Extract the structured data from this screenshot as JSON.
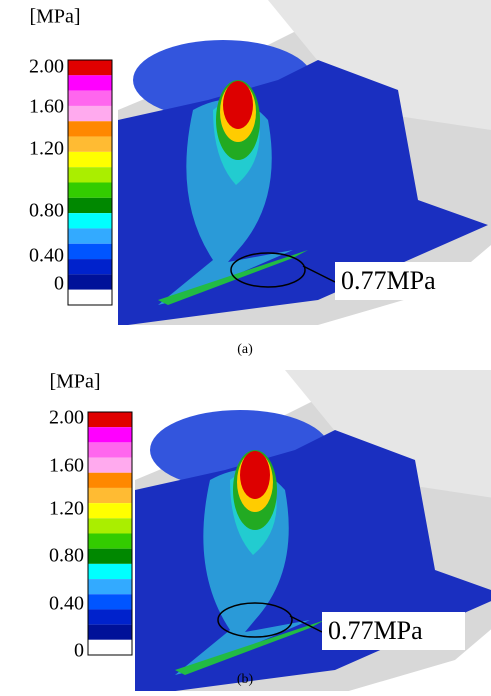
{
  "panels": [
    {
      "unit": "[MPa]",
      "scale_labels": [
        "2.00",
        "1.60",
        "1.20",
        "0.80",
        "0.40",
        "0"
      ],
      "annotation": "0.77MPa",
      "caption": "(a)"
    },
    {
      "unit": "[MPa]",
      "scale_labels": [
        "2.00",
        "1.60",
        "1.20",
        "0.80",
        "0.40",
        "0"
      ],
      "annotation": "0.77MPa",
      "caption": "(b)"
    }
  ]
}
